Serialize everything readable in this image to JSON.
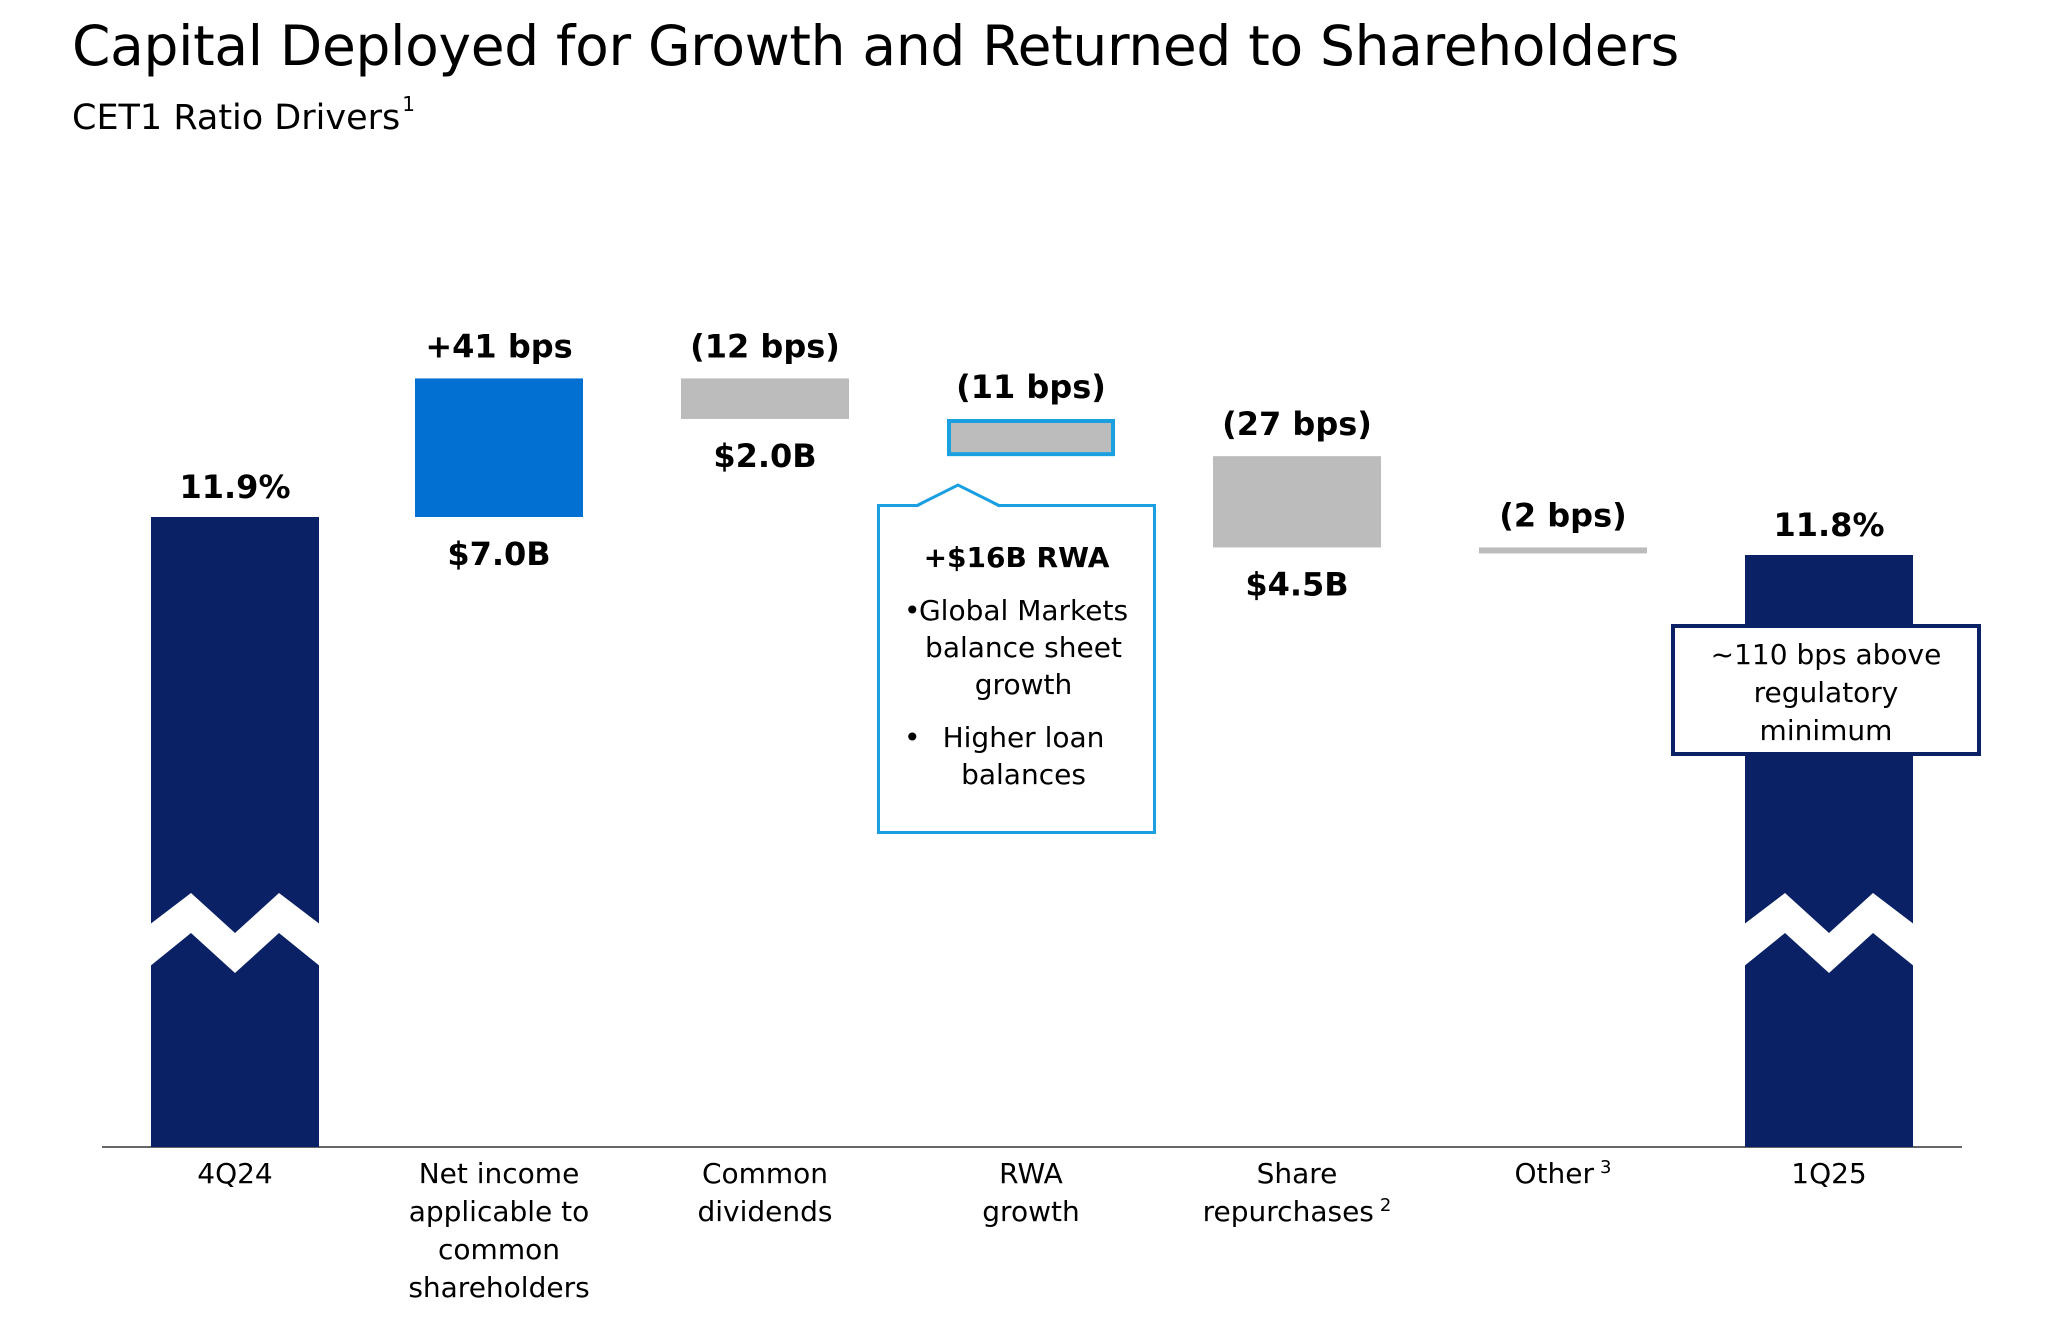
{
  "title": "Capital Deployed for Growth and Returned to Shareholders",
  "subtitle": "CET1 Ratio Drivers",
  "subtitle_footnote": "1",
  "colors": {
    "endpoint": "#0a2166",
    "increase": "#0270d3",
    "decrease": "#bcbcbc",
    "highlight_border": "#1a9fe0",
    "axis": "#666666"
  },
  "chart_data": {
    "type": "bar",
    "subtype": "waterfall",
    "units_top": "bps",
    "categories": [
      {
        "label": [
          "4Q24"
        ],
        "footnote": ""
      },
      {
        "label": [
          "Net income",
          "applicable to",
          "common",
          "shareholders"
        ],
        "footnote": ""
      },
      {
        "label": [
          "Common",
          "dividends"
        ],
        "footnote": ""
      },
      {
        "label": [
          "RWA",
          "growth"
        ],
        "footnote": ""
      },
      {
        "label": [
          "Share",
          "repurchases"
        ],
        "footnote": "2"
      },
      {
        "label": [
          "Other"
        ],
        "footnote": "3"
      },
      {
        "label": [
          "1Q25"
        ],
        "footnote": ""
      }
    ],
    "bars": [
      {
        "kind": "total",
        "value_pct": 11.9,
        "top_label": "11.9%",
        "bottom_label": "",
        "axis_break": true
      },
      {
        "kind": "increase",
        "change_bps": 41,
        "top_label": "+41 bps",
        "bottom_label": "$7.0B"
      },
      {
        "kind": "decrease",
        "change_bps": -12,
        "top_label": "(12 bps)",
        "bottom_label": "$2.0B"
      },
      {
        "kind": "decrease",
        "change_bps": -11,
        "top_label": "(11 bps)",
        "bottom_label": "",
        "highlight": true
      },
      {
        "kind": "decrease",
        "change_bps": -27,
        "top_label": "(27 bps)",
        "bottom_label": "$4.5B"
      },
      {
        "kind": "decrease",
        "change_bps": -2,
        "top_label": "(2 bps)",
        "bottom_label": ""
      },
      {
        "kind": "total",
        "value_pct": 11.8,
        "top_label": "11.8%",
        "bottom_label": "",
        "axis_break": true
      }
    ]
  },
  "rwa_callout": {
    "title": "+$16B RWA",
    "bullets": [
      [
        "Global Markets",
        "balance sheet",
        "growth"
      ],
      [
        "Higher loan",
        "balances"
      ]
    ]
  },
  "regulatory_callout": {
    "lines": [
      "~110 bps above",
      "regulatory",
      "minimum"
    ]
  }
}
